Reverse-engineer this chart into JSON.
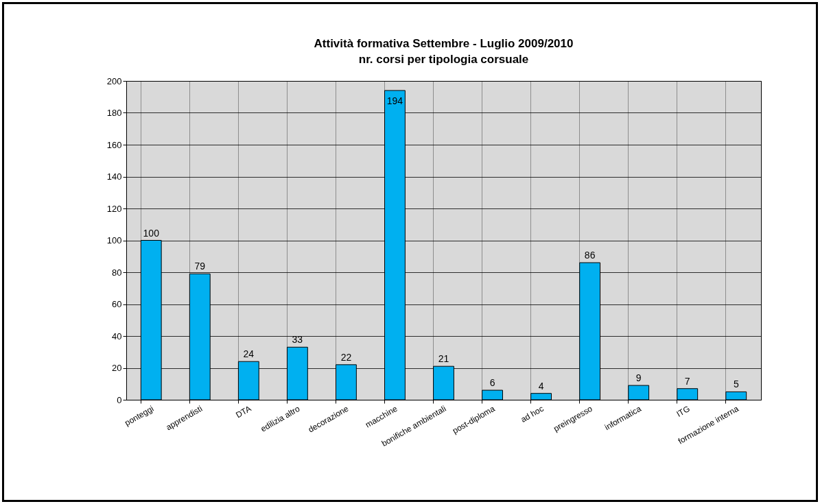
{
  "chart_data": {
    "type": "bar",
    "title": "Attività formativa Settembre - Luglio 2009/2010",
    "subtitle": "nr. corsi per tipologia corsuale",
    "categories": [
      "ponteggi",
      "apprendisti",
      "DTA",
      "edilizia altro",
      "decorazione",
      "macchine",
      "bonifiche ambientali",
      "post-diploma",
      "ad hoc",
      "preingresso",
      "informatica",
      "ITG",
      "formazione interna"
    ],
    "values": [
      100,
      79,
      24,
      33,
      22,
      194,
      21,
      6,
      4,
      86,
      9,
      7,
      5
    ],
    "color": "#00b0f0",
    "ylim": [
      0,
      200
    ],
    "yticks": [
      0,
      20,
      40,
      60,
      80,
      100,
      120,
      140,
      160,
      180,
      200
    ],
    "grid": true,
    "data_labels": true
  }
}
